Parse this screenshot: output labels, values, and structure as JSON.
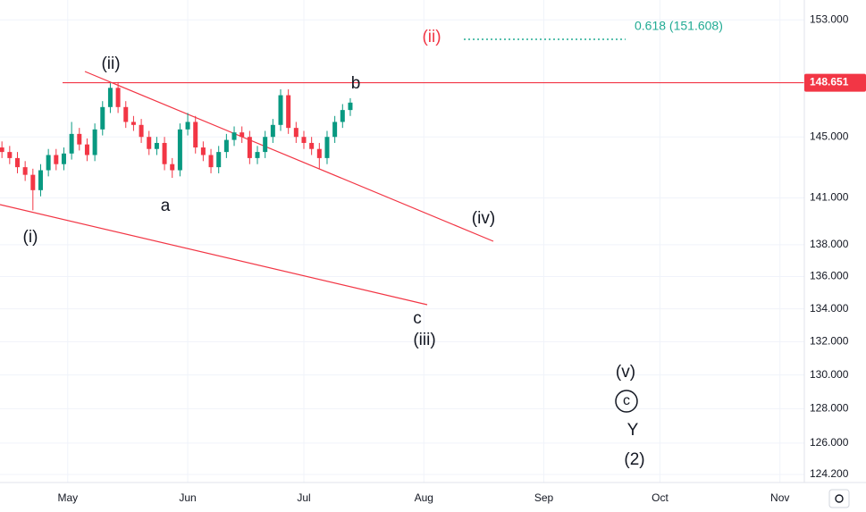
{
  "chart_data": {
    "type": "candlestick",
    "up_color": "#089981",
    "down_color": "#f23645",
    "log_scale": true,
    "grid": true,
    "x": [
      -17,
      -15,
      -13,
      -11,
      -9,
      -7,
      -5,
      -3,
      -1,
      1,
      3,
      5,
      7,
      9,
      11,
      13,
      15,
      17,
      19,
      21,
      23,
      25,
      27,
      29,
      31,
      33,
      35,
      37,
      39,
      41,
      43,
      45,
      47,
      49,
      51,
      53,
      55,
      57,
      59,
      61,
      63,
      65,
      67,
      69,
      71,
      73
    ],
    "open": [
      144.3,
      144.0,
      143.6,
      143.0,
      142.5,
      141.5,
      142.8,
      143.8,
      143.2,
      143.9,
      145.2,
      144.5,
      143.8,
      145.5,
      147.0,
      148.3,
      147.0,
      146.0,
      145.8,
      145.0,
      144.2,
      144.6,
      143.2,
      142.8,
      145.5,
      146.0,
      144.3,
      143.8,
      143.0,
      144.0,
      144.8,
      145.3,
      145.0,
      143.6,
      144.0,
      145.0,
      145.8,
      147.8,
      145.6,
      145.0,
      144.6,
      144.2,
      143.6,
      145.0,
      146.0,
      146.8
    ],
    "high": [
      144.7,
      144.4,
      144.0,
      143.4,
      142.9,
      143.2,
      144.2,
      144.2,
      144.3,
      146.0,
      145.6,
      144.9,
      145.9,
      147.4,
      148.7,
      148.7,
      147.4,
      146.4,
      146.2,
      145.4,
      145.0,
      145.0,
      143.6,
      145.9,
      146.6,
      146.4,
      144.7,
      144.2,
      144.4,
      145.2,
      145.7,
      145.7,
      145.4,
      144.4,
      145.4,
      146.2,
      148.2,
      148.2,
      146.0,
      145.4,
      145.0,
      144.6,
      145.4,
      146.4,
      147.2,
      147.6
    ],
    "low": [
      143.6,
      143.2,
      142.6,
      142.1,
      140.2,
      141.1,
      142.4,
      142.8,
      142.8,
      143.5,
      144.1,
      143.4,
      143.4,
      145.1,
      146.6,
      146.6,
      145.6,
      145.4,
      144.6,
      143.8,
      143.8,
      142.8,
      142.3,
      142.4,
      145.1,
      143.9,
      143.4,
      142.6,
      142.6,
      143.6,
      144.4,
      144.6,
      143.2,
      143.2,
      143.6,
      144.6,
      145.4,
      145.2,
      144.6,
      144.2,
      143.8,
      142.9,
      143.2,
      144.6,
      145.6,
      146.4
    ],
    "close": [
      144.0,
      143.6,
      143.0,
      142.5,
      141.5,
      142.8,
      143.8,
      143.2,
      143.9,
      145.2,
      144.5,
      143.8,
      145.5,
      147.0,
      148.3,
      147.0,
      146.0,
      145.8,
      145.0,
      144.2,
      144.6,
      143.2,
      142.8,
      145.5,
      146.0,
      144.3,
      143.8,
      143.0,
      144.0,
      144.8,
      145.3,
      145.0,
      143.6,
      144.0,
      145.0,
      145.8,
      147.8,
      145.6,
      145.0,
      144.6,
      144.2,
      143.6,
      145.0,
      146.0,
      146.8,
      147.3
    ],
    "xlim": [
      -17.5,
      190.3
    ],
    "xticks": [
      {
        "value": 0,
        "label": "May"
      },
      {
        "value": 31,
        "label": "Jun"
      },
      {
        "value": 61,
        "label": "Jul"
      },
      {
        "value": 92,
        "label": "Aug"
      },
      {
        "value": 123,
        "label": "Sep"
      },
      {
        "value": 153,
        "label": "Oct"
      },
      {
        "value": 184,
        "label": "Nov"
      }
    ],
    "ylim": [
      123.74,
      154.4
    ],
    "yticks": [
      {
        "value": 153,
        "label": "153.000"
      },
      {
        "value": 145,
        "label": "145.000"
      },
      {
        "value": 141,
        "label": "141.000"
      },
      {
        "value": 138,
        "label": "138.000"
      },
      {
        "value": 136,
        "label": "136.000"
      },
      {
        "value": 134,
        "label": "134.000"
      },
      {
        "value": 132,
        "label": "132.000"
      },
      {
        "value": 130,
        "label": "130.000"
      },
      {
        "value": 128,
        "label": "128.000"
      },
      {
        "value": 126,
        "label": "126.000"
      },
      {
        "value": 124.2,
        "label": "124.200"
      }
    ],
    "current_price": 148.651,
    "annotations": [
      "(ii)",
      "0.618 (151.608)",
      "(ii)",
      "b",
      "(i)",
      "a",
      "(iv)",
      "c",
      "(iii)",
      "(v)",
      "c",
      "Y",
      "(2)"
    ]
  }
}
